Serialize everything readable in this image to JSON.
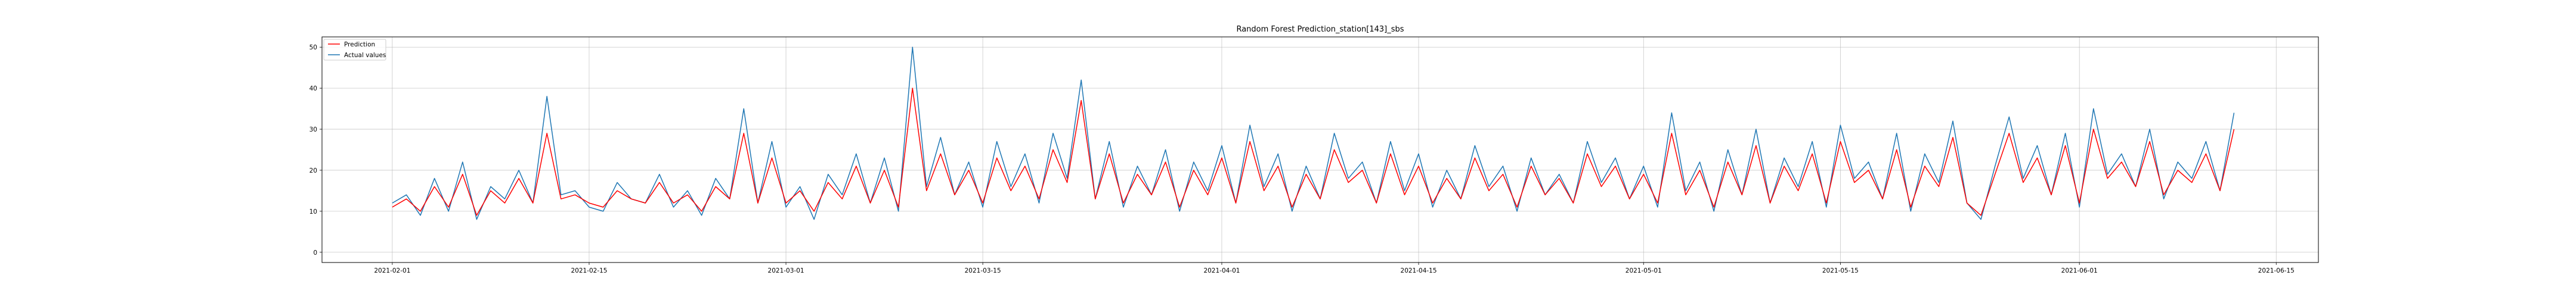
{
  "chart_data": {
    "type": "line",
    "title": "Random Forest Prediction_station[143]_sbs",
    "xlabel": "",
    "ylabel": "",
    "x_range": [
      "2021-01-27",
      "2021-06-18"
    ],
    "ylim": [
      -2.5,
      52.5
    ],
    "x_ticks": [
      "2021-02-01",
      "2021-02-15",
      "2021-03-01",
      "2021-03-15",
      "2021-04-01",
      "2021-04-15",
      "2021-05-01",
      "2021-05-15",
      "2021-06-01",
      "2021-06-15"
    ],
    "y_ticks": [
      0,
      10,
      20,
      30,
      40,
      50
    ],
    "grid": true,
    "legend_position": "top-left",
    "series": [
      {
        "name": "Prediction",
        "color": "#ff0000"
      },
      {
        "name": "Actual values",
        "color": "#1f77b4"
      }
    ],
    "x": [
      "2021-02-01",
      "2021-02-02",
      "2021-02-03",
      "2021-02-04",
      "2021-02-05",
      "2021-02-06",
      "2021-02-07",
      "2021-02-08",
      "2021-02-09",
      "2021-02-10",
      "2021-02-11",
      "2021-02-12",
      "2021-02-13",
      "2021-02-14",
      "2021-02-15",
      "2021-02-16",
      "2021-02-17",
      "2021-02-18",
      "2021-02-19",
      "2021-02-20",
      "2021-02-21",
      "2021-02-22",
      "2021-02-23",
      "2021-02-24",
      "2021-02-25",
      "2021-02-26",
      "2021-02-27",
      "2021-02-28",
      "2021-03-01",
      "2021-03-02",
      "2021-03-03",
      "2021-03-04",
      "2021-03-05",
      "2021-03-06",
      "2021-03-07",
      "2021-03-08",
      "2021-03-09",
      "2021-03-10",
      "2021-03-11",
      "2021-03-12",
      "2021-03-13",
      "2021-03-14",
      "2021-03-15",
      "2021-03-16",
      "2021-03-17",
      "2021-03-18",
      "2021-03-19",
      "2021-03-20",
      "2021-03-21",
      "2021-03-22",
      "2021-03-23",
      "2021-03-24",
      "2021-03-25",
      "2021-03-26",
      "2021-03-27",
      "2021-03-28",
      "2021-03-29",
      "2021-03-30",
      "2021-03-31",
      "2021-04-01",
      "2021-04-02",
      "2021-04-03",
      "2021-04-04",
      "2021-04-05",
      "2021-04-06",
      "2021-04-07",
      "2021-04-08",
      "2021-04-09",
      "2021-04-10",
      "2021-04-11",
      "2021-04-12",
      "2021-04-13",
      "2021-04-14",
      "2021-04-15",
      "2021-04-16",
      "2021-04-17",
      "2021-04-18",
      "2021-04-19",
      "2021-04-20",
      "2021-04-21",
      "2021-04-22",
      "2021-04-23",
      "2021-04-24",
      "2021-04-25",
      "2021-04-26",
      "2021-04-27",
      "2021-04-28",
      "2021-04-29",
      "2021-04-30",
      "2021-05-01",
      "2021-05-02",
      "2021-05-03",
      "2021-05-04",
      "2021-05-05",
      "2021-05-06",
      "2021-05-07",
      "2021-05-08",
      "2021-05-09",
      "2021-05-10",
      "2021-05-11",
      "2021-05-12",
      "2021-05-13",
      "2021-05-14",
      "2021-05-15",
      "2021-05-16",
      "2021-05-17",
      "2021-05-18",
      "2021-05-19",
      "2021-05-20",
      "2021-05-21",
      "2021-05-22",
      "2021-05-23",
      "2021-05-24",
      "2021-05-25",
      "2021-05-26",
      "2021-05-27",
      "2021-05-28",
      "2021-05-29",
      "2021-05-30",
      "2021-05-31",
      "2021-06-01",
      "2021-06-02",
      "2021-06-03",
      "2021-06-04",
      "2021-06-05",
      "2021-06-06",
      "2021-06-07",
      "2021-06-08",
      "2021-06-09",
      "2021-06-10",
      "2021-06-11",
      "2021-06-12"
    ],
    "values_actual": [
      12,
      14,
      9,
      18,
      10,
      22,
      8,
      16,
      13,
      20,
      12,
      38,
      14,
      15,
      11,
      10,
      17,
      13,
      12,
      19,
      11,
      15,
      9,
      18,
      13,
      35,
      12,
      27,
      11,
      16,
      8,
      19,
      14,
      24,
      12,
      23,
      10,
      50,
      16,
      28,
      14,
      22,
      11,
      27,
      16,
      24,
      12,
      29,
      18,
      42,
      13,
      27,
      11,
      21,
      14,
      25,
      10,
      22,
      15,
      26,
      12,
      31,
      16,
      24,
      10,
      21,
      13,
      29,
      18,
      22,
      12,
      27,
      15,
      24,
      11,
      20,
      13,
      26,
      16,
      21,
      10,
      23,
      14,
      19,
      12,
      27,
      17,
      23,
      13,
      21,
      11,
      34,
      15,
      22,
      10,
      25,
      14,
      30,
      12,
      23,
      16,
      27,
      11,
      31,
      18,
      22,
      13,
      29,
      10,
      24,
      17,
      32,
      12,
      8,
      21,
      33,
      18,
      26,
      14,
      29,
      11,
      35,
      19,
      24,
      16,
      30,
      13,
      22,
      18,
      27,
      15,
      34
    ],
    "values_prediction": [
      11,
      13,
      10,
      16,
      11,
      19,
      9,
      15,
      12,
      18,
      12,
      29,
      13,
      14,
      12,
      11,
      15,
      13,
      12,
      17,
      12,
      14,
      10,
      16,
      13,
      29,
      12,
      23,
      12,
      15,
      10,
      17,
      13,
      21,
      12,
      20,
      11,
      40,
      15,
      24,
      14,
      20,
      12,
      23,
      15,
      21,
      13,
      25,
      17,
      37,
      13,
      24,
      12,
      19,
      14,
      22,
      11,
      20,
      14,
      23,
      12,
      27,
      15,
      21,
      11,
      19,
      13,
      25,
      17,
      20,
      12,
      24,
      14,
      21,
      12,
      18,
      13,
      23,
      15,
      19,
      11,
      21,
      14,
      18,
      12,
      24,
      16,
      21,
      13,
      19,
      12,
      29,
      14,
      20,
      11,
      22,
      14,
      26,
      12,
      21,
      15,
      24,
      12,
      27,
      17,
      20,
      13,
      25,
      11,
      21,
      16,
      28,
      12,
      9,
      19,
      29,
      17,
      23,
      14,
      26,
      12,
      30,
      18,
      22,
      16,
      27,
      14,
      20,
      17,
      24,
      15,
      30
    ]
  }
}
